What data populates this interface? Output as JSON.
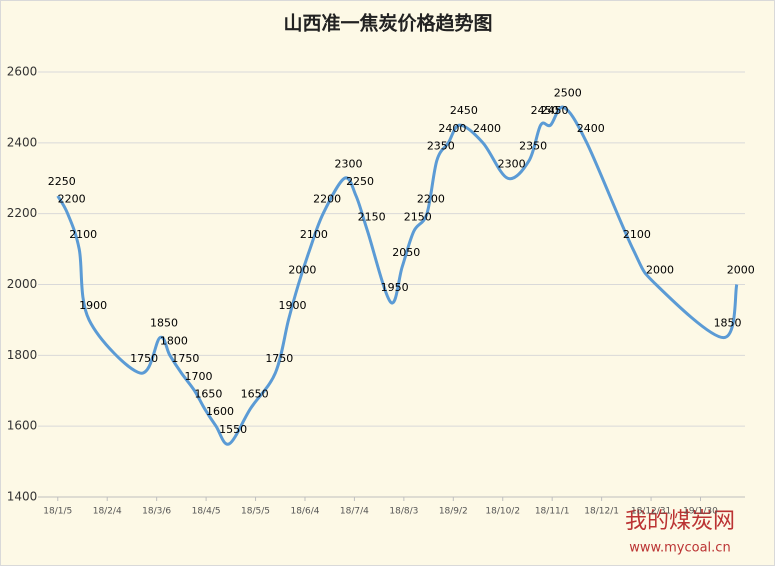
{
  "chart_data": {
    "type": "line",
    "title": "山西准一焦炭价格趋势图",
    "x": [
      "18/1/5",
      "18/1/11",
      "18/1/18",
      "18/1/24",
      "18/2/24",
      "18/3/8",
      "18/3/14",
      "18/3/21",
      "18/3/29",
      "18/4/4",
      "18/4/11",
      "18/4/19",
      "18/5/2",
      "18/5/17",
      "18/5/25",
      "18/5/31",
      "18/6/7",
      "18/6/15",
      "18/6/28",
      "18/7/5",
      "18/7/12",
      "18/7/26",
      "18/8/2",
      "18/8/9",
      "18/8/17",
      "18/8/23",
      "18/8/30",
      "18/9/6",
      "18/9/20",
      "18/10/5",
      "18/10/18",
      "18/10/25",
      "18/10/31",
      "18/11/8",
      "18/11/22",
      "18/12/20",
      "19/1/3",
      "19/2/13",
      "19/2/21"
    ],
    "series": [
      {
        "color": "#5b9bd5",
        "values": [
          2250,
          2200,
          2100,
          1900,
          1750,
          1850,
          1800,
          1750,
          1700,
          1650,
          1600,
          1550,
          1650,
          1750,
          1900,
          2000,
          2100,
          2200,
          2300,
          2250,
          2150,
          1950,
          2050,
          2150,
          2200,
          2350,
          2400,
          2450,
          2400,
          2300,
          2350,
          2450,
          2450,
          2500,
          2400,
          2100,
          2000,
          1850,
          2000
        ]
      }
    ],
    "xlim": [
      "17/12/24",
      "19/2/26"
    ],
    "xticks": [
      "18/1/5",
      "18/2/4",
      "18/3/6",
      "18/4/5",
      "18/5/5",
      "18/6/4",
      "18/7/4",
      "18/8/3",
      "18/9/2",
      "18/10/2",
      "18/11/1",
      "18/12/1",
      "18/12/31",
      "19/1/30"
    ],
    "ylim": [
      1400,
      2600
    ],
    "yticks": [
      1400,
      1600,
      1800,
      2000,
      2200,
      2400,
      2600
    ],
    "grid": true
  },
  "logo": {
    "name": "我的煤炭网",
    "url": "www.mycoal.cn"
  }
}
